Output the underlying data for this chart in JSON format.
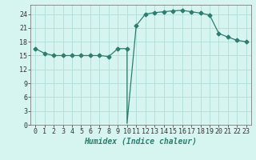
{
  "x": [
    0,
    1,
    2,
    3,
    4,
    5,
    6,
    7,
    8,
    9,
    10,
    10,
    11,
    12,
    13,
    14,
    15,
    16,
    17,
    18,
    19,
    20,
    21,
    22,
    23
  ],
  "y": [
    16.5,
    15.5,
    15.0,
    15.0,
    15.0,
    15.0,
    15.0,
    15.0,
    14.8,
    16.5,
    16.5,
    0.3,
    21.5,
    24.0,
    24.3,
    24.5,
    24.7,
    24.8,
    24.5,
    24.2,
    23.8,
    19.8,
    19.0,
    18.3,
    18.0
  ],
  "markers_x": [
    0,
    1,
    2,
    3,
    4,
    5,
    6,
    7,
    8,
    9,
    10,
    11,
    12,
    13,
    14,
    15,
    16,
    17,
    18,
    19,
    20,
    21,
    22,
    23
  ],
  "markers_y": [
    16.5,
    15.5,
    15.0,
    15.0,
    15.0,
    15.0,
    15.0,
    15.0,
    14.8,
    16.5,
    16.5,
    21.5,
    24.0,
    24.3,
    24.5,
    24.7,
    24.8,
    24.5,
    24.2,
    23.8,
    19.8,
    19.0,
    18.3,
    18.0
  ],
  "line_color": "#2e7d6e",
  "marker": "D",
  "marker_size": 2.5,
  "bg_color": "#d6f5f0",
  "grid_color": "#b0ddd8",
  "xlabel": "Humidex (Indice chaleur)",
  "xlabel_fontsize": 7,
  "tick_fontsize": 6,
  "ylim": [
    0,
    26
  ],
  "xlim": [
    -0.5,
    23.5
  ],
  "yticks": [
    0,
    3,
    6,
    9,
    12,
    15,
    18,
    21,
    24
  ],
  "xticks": [
    0,
    1,
    2,
    3,
    4,
    5,
    6,
    7,
    8,
    9,
    10,
    11,
    12,
    13,
    14,
    15,
    16,
    17,
    18,
    19,
    20,
    21,
    22,
    23
  ]
}
